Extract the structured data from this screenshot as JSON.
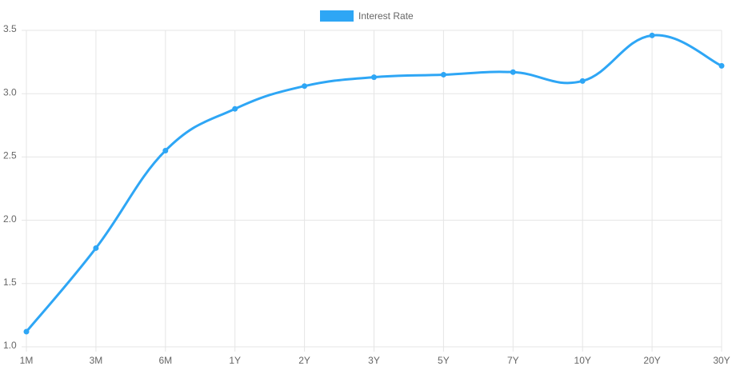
{
  "chart_data": {
    "type": "line",
    "categories": [
      "1M",
      "3M",
      "6M",
      "1Y",
      "2Y",
      "3Y",
      "5Y",
      "7Y",
      "10Y",
      "20Y",
      "30Y"
    ],
    "series": [
      {
        "name": "Interest Rate",
        "color": "#2ea6f5",
        "values": [
          1.12,
          1.78,
          2.55,
          2.88,
          3.06,
          3.13,
          3.15,
          3.17,
          3.1,
          3.46,
          3.22
        ]
      }
    ],
    "ylim": [
      1.0,
      3.5
    ],
    "yticks": [
      {
        "value": 1.0,
        "label": "1.0"
      },
      1.5,
      {
        "value": 2.0,
        "label": "2.0"
      },
      2.5,
      {
        "value": 3.0,
        "label": "3.0"
      },
      3.5
    ],
    "grid": true,
    "legend": "top"
  }
}
